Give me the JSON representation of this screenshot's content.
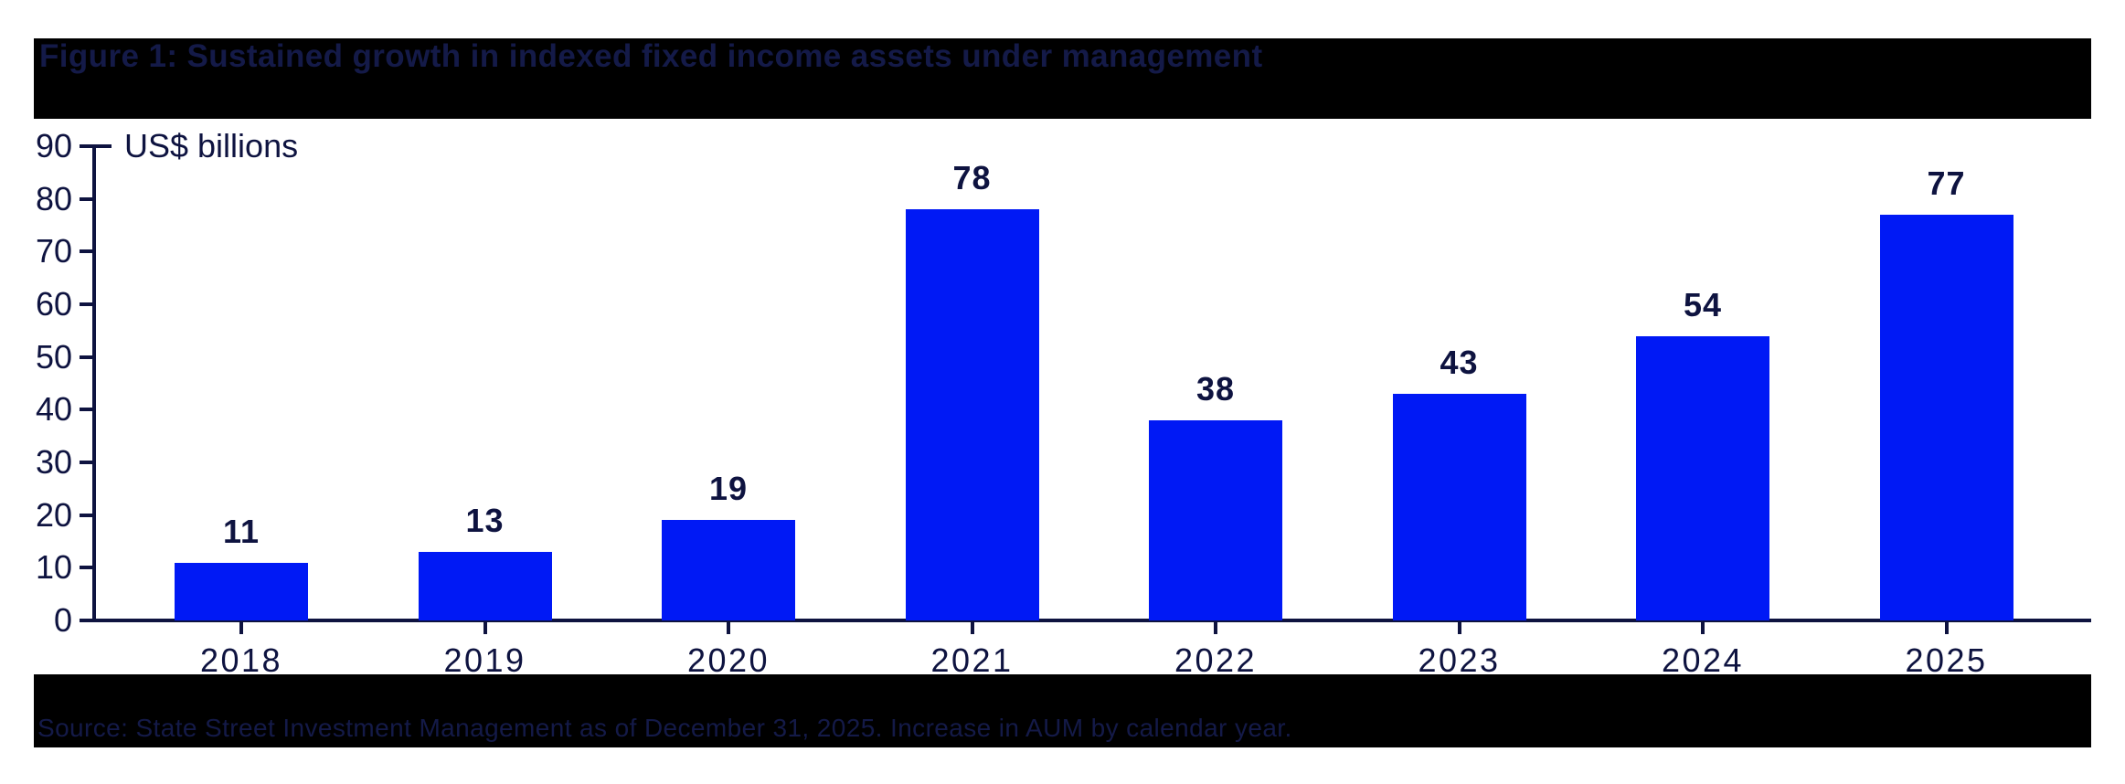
{
  "figure": {
    "title": "Figure 1: Sustained growth in indexed fixed income assets under management",
    "source": "Source: State Street Investment Management as of December 31, 2025. Increase in AUM by calendar year."
  },
  "chart_data": {
    "type": "bar",
    "title": "Figure 1: Sustained growth in indexed fixed income assets under management",
    "unit_label": "US$ billions",
    "xlabel": "",
    "ylabel": "US$ billions",
    "categories": [
      "2018",
      "2019",
      "2020",
      "2021",
      "2022",
      "2023",
      "2024",
      "2025"
    ],
    "values": [
      11,
      13,
      19,
      78,
      38,
      43,
      54,
      77
    ],
    "ylim": [
      0,
      90
    ],
    "yticks": [
      0,
      10,
      20,
      30,
      40,
      50,
      60,
      70,
      80,
      90
    ],
    "grid": false,
    "legend": "none",
    "source_note": "Source: State Street Investment Management as of December 31, 2025. Increase in AUM by calendar year.",
    "colors": {
      "bar": "#0019f5",
      "axis_text": "#0e1340",
      "band_background": "#000000",
      "band_text": "#141a48"
    }
  }
}
